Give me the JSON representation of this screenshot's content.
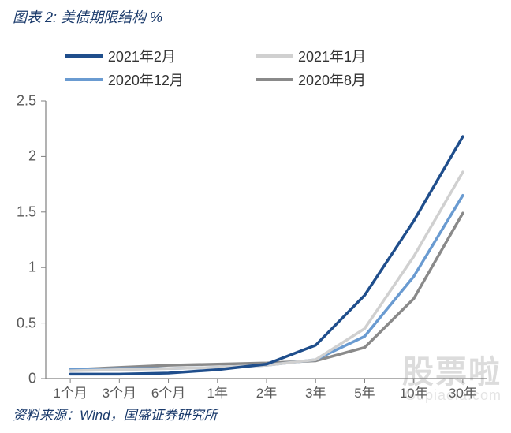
{
  "title": "图表 2:  美债期限结构  %",
  "footer": "资料来源：Wind，国盛证券研究所",
  "watermark": {
    "line1": "股票啦",
    "line2": "Gupiaola.com"
  },
  "chart": {
    "type": "line",
    "background_color": "#ffffff",
    "title_color": "#1a3a6b",
    "axis_color": "#808080",
    "tick_color": "#808080",
    "tick_label_color": "#595959",
    "tick_fontsize": 18,
    "line_width": 3.5,
    "ylim": [
      0,
      2.5
    ],
    "ytick_step": 0.5,
    "yticks": [
      0,
      0.5,
      1,
      1.5,
      2,
      2.5
    ],
    "categories": [
      "1个月",
      "3个月",
      "6个月",
      "1年",
      "2年",
      "3年",
      "5年",
      "10年",
      "30年"
    ],
    "legend_position": "top",
    "legend_fontsize": 18,
    "series": [
      {
        "name": "2021年2月",
        "color": "#1f4e8c",
        "values": [
          0.04,
          0.04,
          0.05,
          0.08,
          0.13,
          0.3,
          0.75,
          1.42,
          2.18
        ]
      },
      {
        "name": "2021年1月",
        "color": "#d0d0d0",
        "values": [
          0.07,
          0.08,
          0.09,
          0.1,
          0.12,
          0.17,
          0.45,
          1.1,
          1.86
        ]
      },
      {
        "name": "2020年12月",
        "color": "#6a9bd1",
        "values": [
          0.08,
          0.09,
          0.09,
          0.1,
          0.12,
          0.17,
          0.38,
          0.92,
          1.65
        ]
      },
      {
        "name": "2020年8月",
        "color": "#8a8a8a",
        "values": [
          0.08,
          0.1,
          0.12,
          0.13,
          0.14,
          0.16,
          0.28,
          0.72,
          1.49
        ]
      }
    ]
  }
}
